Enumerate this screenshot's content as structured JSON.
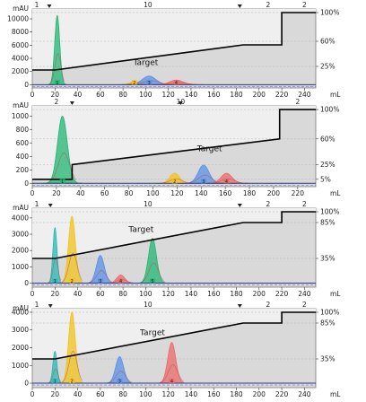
{
  "colors": {
    "plot_bg": "#d9d9d9",
    "gradient_line": "#000000",
    "baseline": "#2b3a8c",
    "green": "#22b573",
    "yellow": "#f2c21b",
    "blue": "#5b8fe6",
    "red": "#ec6a6a",
    "teal": "#2bb7b3",
    "orange": "#e8903a"
  },
  "chart_data": [
    {
      "type": "area",
      "x_unit": "mL",
      "y_unit": "mAU",
      "xlim": [
        0,
        250
      ],
      "x_ticks": [
        0,
        20,
        40,
        60,
        80,
        100,
        120,
        140,
        160,
        180,
        200,
        220,
        240
      ],
      "ylim": [
        -500,
        11500
      ],
      "y_ticks": [
        0,
        2000,
        4000,
        6000,
        8000,
        10000
      ],
      "right_ticks": [
        "25%",
        "60%",
        "100%"
      ],
      "right_tick_values": [
        25,
        60,
        100
      ],
      "top_labels": [
        {
          "x": 4,
          "text": "1"
        },
        {
          "x": 102,
          "text": "10"
        },
        {
          "x": 208,
          "text": "2"
        },
        {
          "x": 240,
          "text": "2"
        }
      ],
      "markers": [
        15,
        183
      ],
      "gradient": [
        [
          0,
          20
        ],
        [
          20,
          20
        ],
        [
          186,
          55
        ],
        [
          220,
          55
        ],
        [
          220,
          100
        ],
        [
          250,
          100
        ]
      ],
      "gradient_ylim": [
        -5,
        105
      ],
      "annotation": {
        "text": "Target",
        "x": 100,
        "y": 3000
      },
      "peaks": [
        {
          "color": "green",
          "center": 22,
          "width": 2.2,
          "height": 10500
        },
        {
          "color": "yellow",
          "center": 90,
          "width": 4,
          "height": 500
        },
        {
          "color": "blue",
          "center": 103,
          "width": 6,
          "height": 1300
        },
        {
          "color": "red",
          "center": 127,
          "width": 6,
          "height": 700
        }
      ],
      "fraction_labels": [
        "1",
        "2",
        "3",
        "4",
        "5"
      ]
    },
    {
      "type": "area",
      "x_unit": "mL",
      "y_unit": "mAU",
      "xlim": [
        0,
        235
      ],
      "x_ticks": [
        0,
        20,
        40,
        60,
        80,
        100,
        120,
        140,
        160,
        180,
        200,
        220
      ],
      "ylim": [
        -50,
        1150
      ],
      "y_ticks": [
        0,
        200,
        400,
        600,
        800,
        1000
      ],
      "right_ticks": [
        "5%",
        "25%",
        "60%",
        "100%"
      ],
      "right_tick_values": [
        5,
        25,
        60,
        100
      ],
      "top_labels": [
        {
          "x": 20,
          "text": "2"
        },
        {
          "x": 123,
          "text": "10"
        },
        {
          "x": 220,
          "text": "2"
        }
      ],
      "markers": [
        33,
        123
      ],
      "gradient": [
        [
          0,
          5
        ],
        [
          33,
          5
        ],
        [
          33,
          25
        ],
        [
          205,
          60
        ],
        [
          205,
          100
        ],
        [
          235,
          100
        ]
      ],
      "gradient_ylim": [
        -5,
        105
      ],
      "annotation": {
        "text": "Target",
        "x": 147,
        "y": 480
      },
      "peaks": [
        {
          "color": "green",
          "center": 25,
          "width": 4,
          "height": 1000
        },
        {
          "color": "yellow",
          "center": 118,
          "width": 4,
          "height": 150
        },
        {
          "color": "blue",
          "center": 142,
          "width": 4.5,
          "height": 270
        },
        {
          "color": "red",
          "center": 161,
          "width": 4.5,
          "height": 150
        }
      ],
      "fraction_labels": [
        "1",
        "2",
        "3",
        "4"
      ]
    },
    {
      "type": "area",
      "x_unit": "mL",
      "y_unit": "mAU",
      "xlim": [
        0,
        250
      ],
      "x_ticks": [
        0,
        20,
        40,
        60,
        80,
        100,
        120,
        140,
        160,
        180,
        200,
        220,
        240
      ],
      "ylim": [
        -250,
        4600
      ],
      "y_ticks": [
        0,
        1000,
        2000,
        3000,
        4000
      ],
      "right_ticks": [
        "35%",
        "85%",
        "100%"
      ],
      "right_tick_values": [
        35,
        85,
        100
      ],
      "top_labels": [
        {
          "x": 4,
          "text": "1"
        },
        {
          "x": 102,
          "text": "10"
        },
        {
          "x": 208,
          "text": "2"
        },
        {
          "x": 240,
          "text": "2"
        }
      ],
      "markers": [
        16,
        183
      ],
      "gradient": [
        [
          0,
          35
        ],
        [
          20,
          35
        ],
        [
          186,
          85
        ],
        [
          220,
          85
        ],
        [
          220,
          100
        ],
        [
          250,
          100
        ]
      ],
      "gradient_ylim": [
        -5,
        105
      ],
      "annotation": {
        "text": "Target",
        "x": 96,
        "y": 3150
      },
      "peaks": [
        {
          "color": "teal",
          "center": 20,
          "width": 1.8,
          "height": 3400
        },
        {
          "color": "yellow",
          "center": 35,
          "width": 3,
          "height": 4100
        },
        {
          "color": "blue",
          "center": 60,
          "width": 3.5,
          "height": 1700
        },
        {
          "color": "red",
          "center": 78,
          "width": 3.5,
          "height": 500
        },
        {
          "color": "green",
          "center": 106,
          "width": 3.5,
          "height": 2750
        }
      ],
      "fraction_labels": [
        "1",
        "2",
        "3",
        "4",
        "5",
        "6"
      ]
    },
    {
      "type": "area",
      "x_unit": "mL",
      "y_unit": "mAU",
      "xlim": [
        0,
        250
      ],
      "x_ticks": [
        0,
        20,
        40,
        60,
        80,
        100,
        120,
        140,
        160,
        180,
        200,
        220,
        240
      ],
      "ylim": [
        -250,
        4200
      ],
      "y_ticks": [
        0,
        1000,
        2000,
        3000,
        4000
      ],
      "right_ticks": [
        "35%",
        "85%",
        "100%"
      ],
      "right_tick_values": [
        35,
        85,
        100
      ],
      "top_labels": [
        {
          "x": 4,
          "text": "1"
        },
        {
          "x": 102,
          "text": "10"
        },
        {
          "x": 208,
          "text": "2"
        },
        {
          "x": 240,
          "text": "2"
        }
      ],
      "markers": [
        16,
        183
      ],
      "gradient": [
        [
          0,
          35
        ],
        [
          20,
          35
        ],
        [
          186,
          85
        ],
        [
          220,
          85
        ],
        [
          220,
          100
        ],
        [
          250,
          100
        ]
      ],
      "gradient_ylim": [
        -5,
        105
      ],
      "annotation": {
        "text": "Target",
        "x": 106,
        "y": 2700
      },
      "peaks": [
        {
          "color": "teal",
          "center": 20,
          "width": 1.8,
          "height": 1800
        },
        {
          "color": "yellow",
          "center": 35,
          "width": 3,
          "height": 4000
        },
        {
          "color": "blue",
          "center": 77,
          "width": 3.5,
          "height": 1500
        },
        {
          "color": "red",
          "center": 123,
          "width": 3.5,
          "height": 2300
        }
      ],
      "fraction_labels": [
        "1",
        "2",
        "3",
        "4"
      ]
    }
  ]
}
